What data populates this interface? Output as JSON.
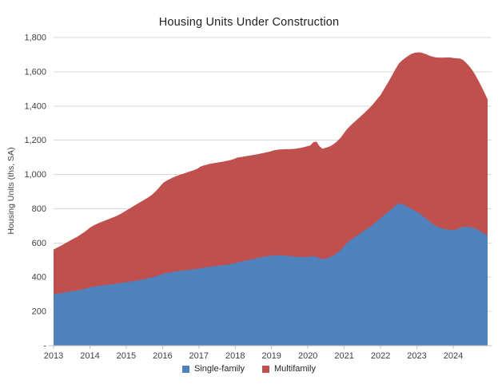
{
  "title": "Housing Units Under Construction",
  "y_axis": {
    "title": "Housing Units (ths, SA)",
    "tick_labels": [
      "-",
      "200",
      "400",
      "600",
      "800",
      "1,000",
      "1,200",
      "1,400",
      "1,600",
      "1,800"
    ]
  },
  "x_axis": {
    "tick_labels": [
      "2013",
      "2014",
      "2015",
      "2016",
      "2017",
      "2018",
      "2019",
      "2020",
      "2021",
      "2022",
      "2023",
      "2024"
    ]
  },
  "legend": {
    "items": [
      {
        "label": "Single-family",
        "color": "#4F81BD"
      },
      {
        "label": "Multifamily",
        "color": "#C0504D"
      }
    ],
    "position": "bottom"
  },
  "chart_data": {
    "type": "area",
    "stacked": true,
    "title": "Housing Units Under Construction",
    "ylabel": "Housing Units (ths, SA)",
    "xlabel": "",
    "ylim": [
      0,
      1800
    ],
    "y_step": 200,
    "grid": "horizontal",
    "legend_position": "bottom",
    "x_start": "2013-01",
    "x_end": "2024-11",
    "frequency": "monthly",
    "x_tick_years": [
      2013,
      2014,
      2015,
      2016,
      2017,
      2018,
      2019,
      2020,
      2021,
      2022,
      2023,
      2024
    ],
    "series": [
      {
        "name": "Single-family",
        "color": "#4F81BD",
        "values": [
          300,
          303,
          306,
          309,
          312,
          315,
          318,
          320,
          323,
          327,
          331,
          336,
          341,
          345,
          348,
          350,
          352,
          354,
          356,
          358,
          360,
          363,
          366,
          369,
          372,
          374,
          377,
          380,
          383,
          386,
          390,
          394,
          398,
          403,
          408,
          414,
          420,
          425,
          428,
          431,
          434,
          436,
          438,
          440,
          442,
          444,
          446,
          449,
          452,
          455,
          458,
          461,
          463,
          465,
          467,
          469,
          471,
          474,
          477,
          481,
          485,
          489,
          493,
          497,
          501,
          505,
          509,
          513,
          517,
          520,
          523,
          525,
          527,
          528,
          528,
          527,
          526,
          524,
          522,
          520,
          519,
          518,
          518,
          519,
          520,
          521,
          520,
          510,
          505,
          508,
          514,
          522,
          532,
          545,
          560,
          580,
          600,
          615,
          628,
          640,
          652,
          664,
          676,
          688,
          700,
          715,
          730,
          745,
          760,
          775,
          790,
          805,
          820,
          831,
          828,
          820,
          810,
          800,
          790,
          780,
          770,
          755,
          740,
          725,
          712,
          700,
          692,
          686,
          681,
          678,
          676,
          676,
          680,
          688,
          694,
          695,
          693,
          690,
          684,
          675,
          664,
          654,
          643
        ]
      },
      {
        "name": "Multifamily",
        "color": "#C0504D",
        "values": [
          262,
          268,
          274,
          281,
          288,
          295,
          302,
          309,
          316,
          324,
          332,
          340,
          350,
          356,
          362,
          368,
          373,
          378,
          383,
          388,
          393,
          398,
          404,
          412,
          420,
          428,
          436,
          444,
          452,
          459,
          466,
          473,
          481,
          492,
          505,
          520,
          533,
          539,
          545,
          551,
          556,
          560,
          564,
          568,
          572,
          576,
          580,
          584,
          594,
          597,
          599,
          601,
          602,
          603,
          604,
          605,
          606,
          607,
          608,
          609,
          613,
          612,
          611,
          610,
          609,
          608,
          607,
          606,
          606,
          607,
          608,
          610,
          614,
          616,
          618,
          620,
          622,
          624,
          627,
          630,
          634,
          638,
          642,
          646,
          650,
          668,
          672,
          655,
          645,
          648,
          647,
          648,
          650,
          653,
          657,
          661,
          665,
          668,
          672,
          676,
          680,
          684,
          689,
          694,
          700,
          706,
          713,
          720,
          735,
          750,
          765,
          782,
          800,
          818,
          838,
          860,
          883,
          903,
          920,
          933,
          943,
          953,
          962,
          969,
          976,
          984,
          991,
          997,
          1002,
          1006,
          1007,
          1004,
          999,
          989,
          974,
          957,
          939,
          919,
          897,
          873,
          849,
          823,
          795
        ]
      }
    ]
  }
}
